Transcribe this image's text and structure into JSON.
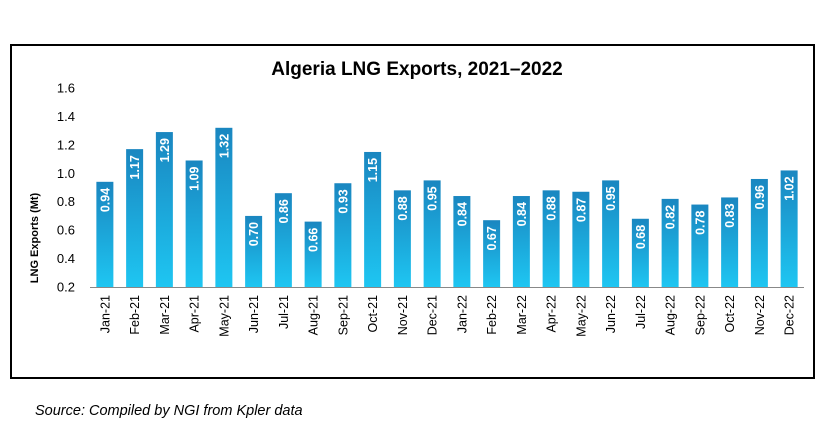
{
  "chart_data": {
    "type": "bar",
    "title": "Algeria LNG Exports, 2021–2022",
    "ylabel": "LNG Exports (Mt)",
    "xlabel": "",
    "ylim": [
      0.2,
      1.6
    ],
    "yticks": [
      "0.2",
      "0.4",
      "0.6",
      "0.8",
      "1.0",
      "1.2",
      "1.4",
      "1.6"
    ],
    "categories": [
      "Jan-21",
      "Feb-21",
      "Mar-21",
      "Apr-21",
      "May-21",
      "Jun-21",
      "Jul-21",
      "Aug-21",
      "Sep-21",
      "Oct-21",
      "Nov-21",
      "Dec-21",
      "Jan-22",
      "Feb-22",
      "Mar-22",
      "Apr-22",
      "May-22",
      "Jun-22",
      "Jul-22",
      "Aug-22",
      "Sep-22",
      "Oct-22",
      "Nov-22",
      "Dec-22"
    ],
    "values": [
      0.94,
      1.17,
      1.29,
      1.09,
      1.32,
      0.7,
      0.86,
      0.66,
      0.93,
      1.15,
      0.88,
      0.95,
      0.84,
      0.67,
      0.84,
      0.88,
      0.87,
      0.95,
      0.68,
      0.82,
      0.78,
      0.83,
      0.96,
      1.02
    ],
    "data_labels": [
      "0.94",
      "1.17",
      "1.29",
      "1.09",
      "1.32",
      "0.70",
      "0.86",
      "0.66",
      "0.93",
      "1.15",
      "0.88",
      "0.95",
      "0.84",
      "0.67",
      "0.84",
      "0.88",
      "0.87",
      "0.95",
      "0.68",
      "0.82",
      "0.78",
      "0.83",
      "0.96",
      "1.02"
    ],
    "grid": false,
    "legend": "none",
    "bar_color_top": "#1a86c0",
    "bar_color_bottom": "#1ec6f2"
  },
  "source": "Source: Compiled by NGI from Kpler data"
}
